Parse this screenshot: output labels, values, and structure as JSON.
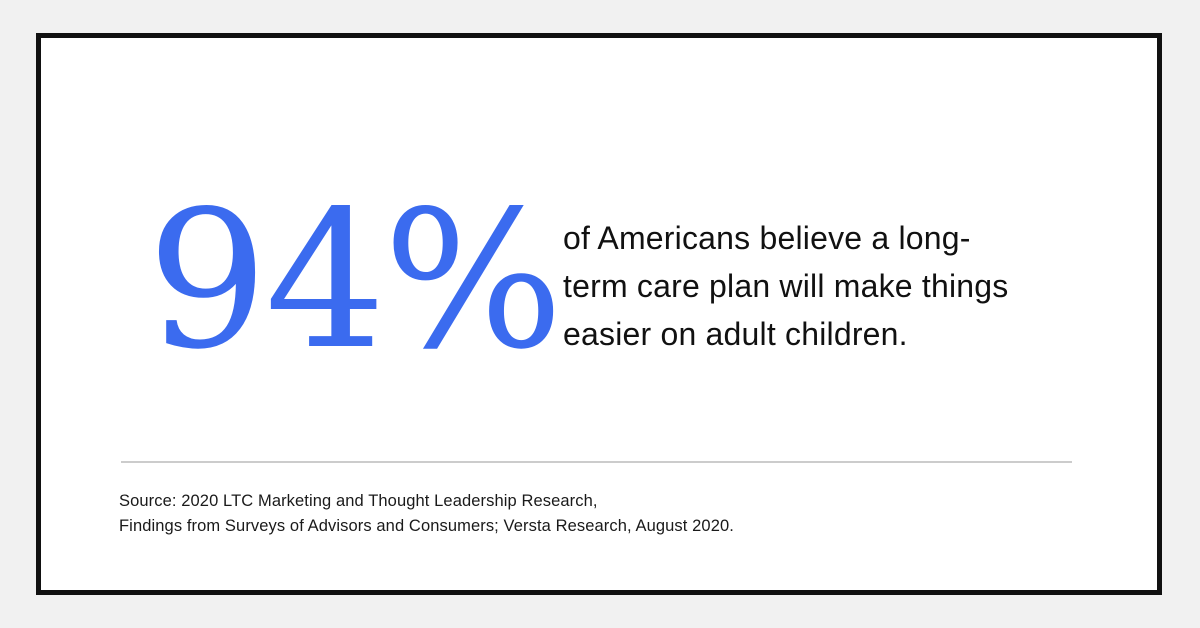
{
  "colors": {
    "page_bg": "#f1f1f1",
    "card_bg": "#ffffff",
    "border": "#111111",
    "accent": "#3b6bef",
    "text": "#111111",
    "muted_text": "#1a1a1a",
    "divider": "#cccccc"
  },
  "stat": {
    "value": "94%",
    "description_lines": [
      "of Americans believe a long-",
      "term care plan will make things",
      "easier on adult children."
    ]
  },
  "source": {
    "lines": [
      "Source: 2020 LTC Marketing and Thought Leadership Research,",
      "Findings from Surveys of Advisors and Consumers; Versta Research, August 2020."
    ]
  }
}
